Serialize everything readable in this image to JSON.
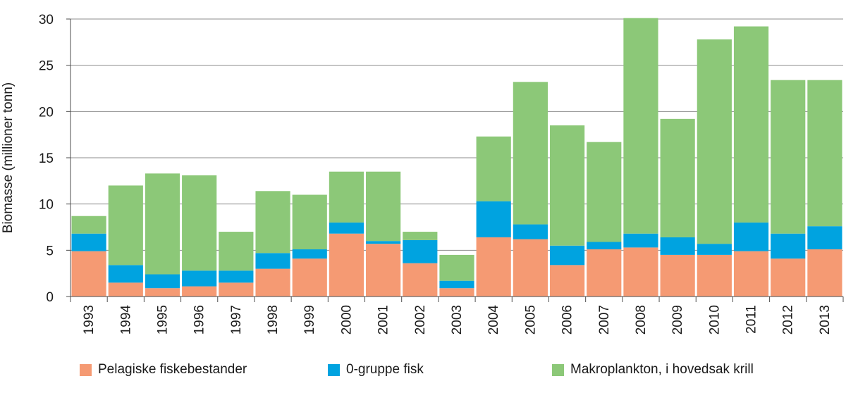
{
  "chart_data": {
    "type": "bar",
    "stacked": true,
    "title": "",
    "xlabel": "",
    "ylabel": "Biomasse (millioner tonn)",
    "ylim": [
      0,
      30
    ],
    "yticks": [
      0,
      5,
      10,
      15,
      20,
      25,
      30
    ],
    "grid": true,
    "legend_position": "bottom",
    "categories": [
      "1993",
      "1994",
      "1995",
      "1996",
      "1997",
      "1998",
      "1999",
      "2000",
      "2001",
      "2002",
      "2003",
      "2004",
      "2005",
      "2006",
      "2007",
      "2008",
      "2009",
      "2010",
      "2011",
      "2012",
      "2013"
    ],
    "series": [
      {
        "name": "Pelagiske fiskebestander",
        "color": "#f59a73",
        "values": [
          4.9,
          1.5,
          0.9,
          1.1,
          1.5,
          3.0,
          4.1,
          6.8,
          5.7,
          3.6,
          0.9,
          6.4,
          6.2,
          3.4,
          5.1,
          5.3,
          4.5,
          4.5,
          4.9,
          4.1,
          5.1
        ]
      },
      {
        "name": "0-gruppe fisk",
        "color": "#00a3e0",
        "values": [
          1.9,
          1.9,
          1.5,
          1.7,
          1.3,
          1.7,
          1.0,
          1.2,
          0.3,
          2.5,
          0.8,
          3.9,
          1.6,
          2.1,
          0.8,
          1.5,
          1.9,
          1.2,
          3.1,
          2.7,
          2.5
        ]
      },
      {
        "name": "Makroplankton, i hovedsak krill",
        "color": "#8cc878",
        "values": [
          1.9,
          8.6,
          10.9,
          10.3,
          4.2,
          6.7,
          5.9,
          5.5,
          7.5,
          0.9,
          2.8,
          7.0,
          15.4,
          13.0,
          10.8,
          23.3,
          12.8,
          22.1,
          21.2,
          16.6,
          15.8
        ]
      }
    ]
  }
}
